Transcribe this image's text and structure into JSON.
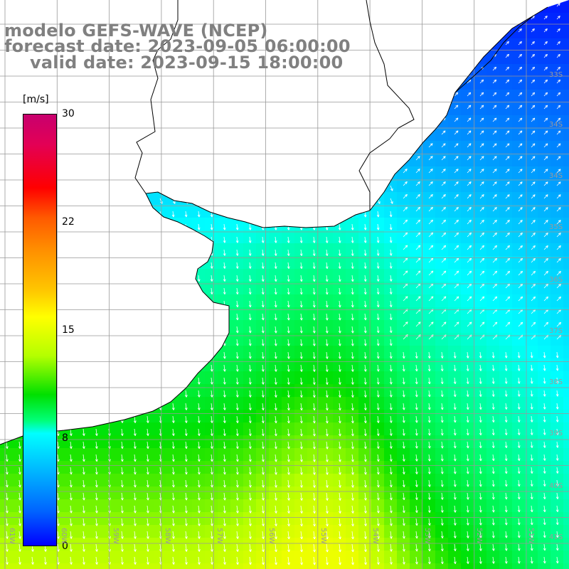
{
  "titles": {
    "model": "modelo GEFS-WAVE (NCEP)",
    "forecast": "forecast date: 2023-09-05 06:00:00",
    "valid": "valid date: 2023-09-15 18:00:00"
  },
  "colorbar": {
    "unit": "[m/s]",
    "ticks": [
      "30",
      "22",
      "15",
      "8",
      "0"
    ],
    "colors": [
      "#0000ff",
      "#0064ff",
      "#00b4ff",
      "#00ffff",
      "#00ff78",
      "#00e000",
      "#b4ff00",
      "#ffff00",
      "#ffc800",
      "#ff8c00",
      "#ff5a00",
      "#ff0000",
      "#e30055",
      "#c8006e"
    ]
  },
  "axes": {
    "lon_labels": [
      "61W",
      "60W",
      "59W",
      "58W",
      "57W",
      "56W",
      "55W",
      "54W",
      "53W",
      "52W",
      "51W"
    ],
    "lat_labels": [
      "33S",
      "34S",
      "35S",
      "36S",
      "37S",
      "38S",
      "39S",
      "40S",
      "41S"
    ]
  },
  "map": {
    "land_color": "#ffffff",
    "coastline_color": "#000000",
    "grid_color": "#999999",
    "arrow_color": "#ffffff"
  }
}
